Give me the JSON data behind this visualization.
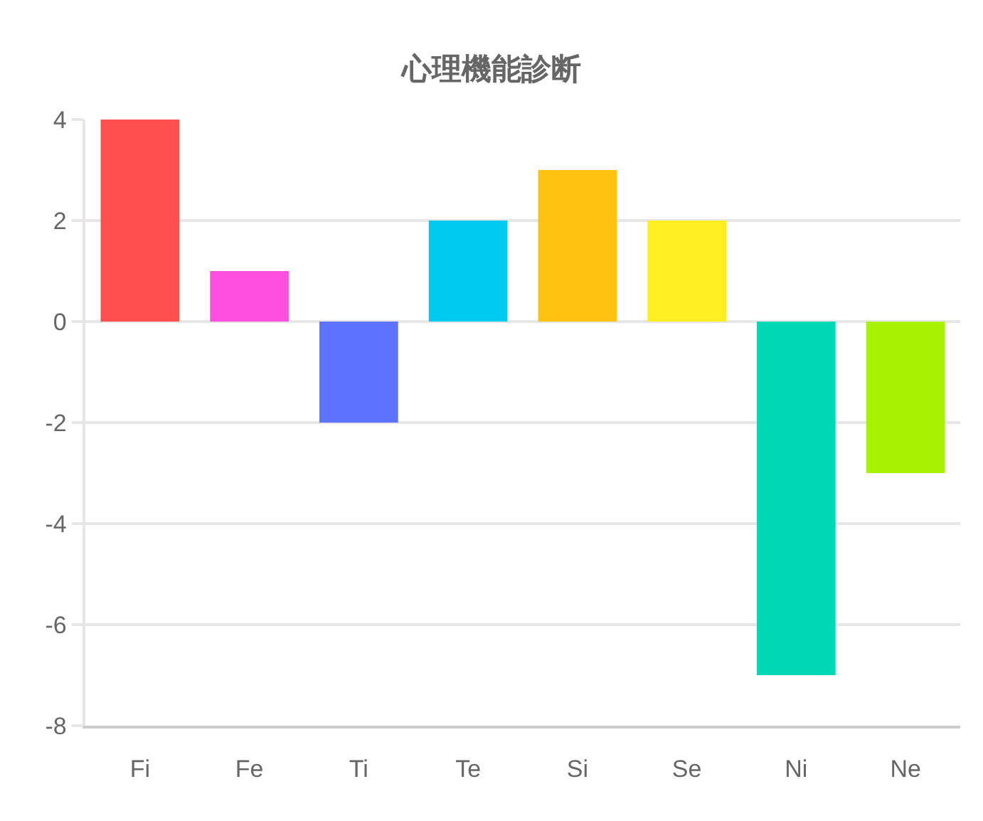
{
  "chart_data": {
    "type": "bar",
    "title": "心理機能診断",
    "categories": [
      "Fi",
      "Fe",
      "Ti",
      "Te",
      "Si",
      "Se",
      "Ni",
      "Ne"
    ],
    "values": [
      4,
      1,
      -2,
      2,
      3,
      2,
      -7,
      -3
    ],
    "colors": [
      "#ff4f4f",
      "#ff4fdf",
      "#5b73ff",
      "#00c9f0",
      "#ffc210",
      "#ffee22",
      "#00d8b5",
      "#a6f200"
    ],
    "ylim": [
      -8,
      4
    ],
    "yticks": [
      -8,
      -6,
      -4,
      -2,
      0,
      2,
      4
    ],
    "grid": "y"
  }
}
